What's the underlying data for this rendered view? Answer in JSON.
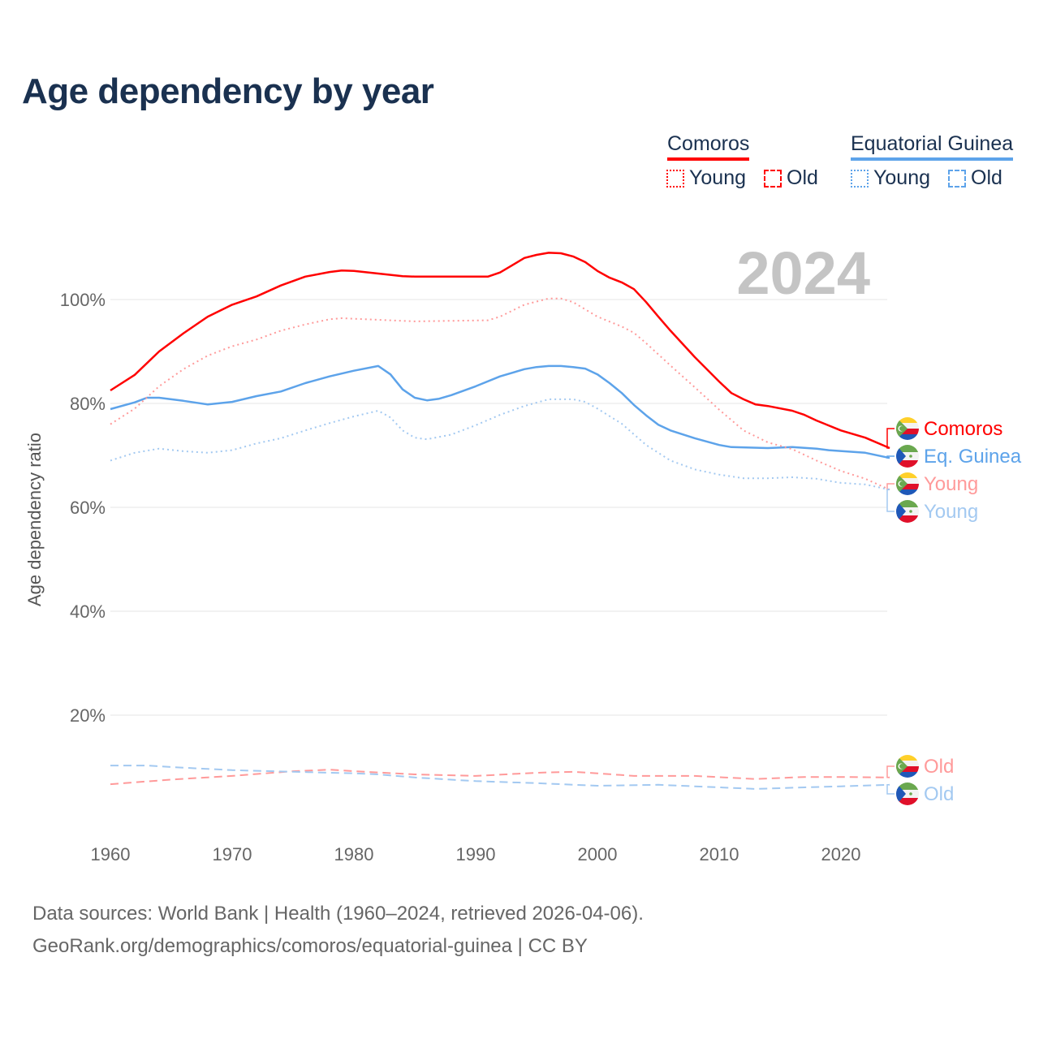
{
  "title": "Age dependency by year",
  "legend": {
    "countries": [
      {
        "name": "Comoros",
        "color": "#ff0000",
        "young_label": "Young",
        "old_label": "Old"
      },
      {
        "name": "Equatorial Guinea",
        "color": "#5da3ea",
        "young_label": "Young",
        "old_label": "Old"
      }
    ]
  },
  "year_watermark": "2024",
  "footer": {
    "line1": "Data sources: World Bank | Health (1960–2024, retrieved 2026-04-06).",
    "line2": "GeoRank.org/demographics/comoros/equatorial-guinea | CC BY"
  },
  "chart_data": {
    "type": "line",
    "title": "Age dependency by year",
    "xlabel": "",
    "ylabel": "Age dependency ratio",
    "xlim": [
      1960,
      2024
    ],
    "ylim": [
      0,
      110
    ],
    "xticks": [
      "1960",
      "1970",
      "1980",
      "1990",
      "2000",
      "2010",
      "2020"
    ],
    "yticks": [
      "20%",
      "40%",
      "60%",
      "80%",
      "100%"
    ],
    "grid": true,
    "series": [
      {
        "name": "Comoros",
        "end_label": "Comoros",
        "country": "comoros",
        "style": "solid",
        "color": "#ff0000",
        "points": [
          [
            1960,
            82.5
          ],
          [
            1962,
            85.5
          ],
          [
            1964,
            90
          ],
          [
            1966,
            93.5
          ],
          [
            1968,
            96.7
          ],
          [
            1970,
            99
          ],
          [
            1972,
            100.6
          ],
          [
            1974,
            102.7
          ],
          [
            1976,
            104.4
          ],
          [
            1978,
            105.3
          ],
          [
            1979,
            105.6
          ],
          [
            1980,
            105.5
          ],
          [
            1982,
            105
          ],
          [
            1984,
            104.5
          ],
          [
            1985,
            104.4
          ],
          [
            1991,
            104.4
          ],
          [
            1992,
            105.2
          ],
          [
            1993,
            106.6
          ],
          [
            1994,
            108
          ],
          [
            1995,
            108.6
          ],
          [
            1996,
            109
          ],
          [
            1997,
            108.9
          ],
          [
            1998,
            108.3
          ],
          [
            1999,
            107.2
          ],
          [
            2000,
            105.5
          ],
          [
            2001,
            104.2
          ],
          [
            2002,
            103.3
          ],
          [
            2003,
            102
          ],
          [
            2004,
            99.5
          ],
          [
            2005,
            96.7
          ],
          [
            2006,
            94
          ],
          [
            2008,
            88.9
          ],
          [
            2010,
            84.2
          ],
          [
            2011,
            82
          ],
          [
            2012,
            80.8
          ],
          [
            2013,
            79.8
          ],
          [
            2014,
            79.5
          ],
          [
            2016,
            78.6
          ],
          [
            2017,
            77.8
          ],
          [
            2018,
            76.7
          ],
          [
            2020,
            74.8
          ],
          [
            2022,
            73.4
          ],
          [
            2024,
            71.4
          ]
        ]
      },
      {
        "name": "Eq. Guinea",
        "end_label": "Eq. Guinea",
        "country": "eqguinea",
        "style": "solid",
        "color": "#5da3ea",
        "points": [
          [
            1960,
            78.9
          ],
          [
            1962,
            80.2
          ],
          [
            1963,
            81.1
          ],
          [
            1964,
            81.1
          ],
          [
            1966,
            80.5
          ],
          [
            1968,
            79.8
          ],
          [
            1970,
            80.3
          ],
          [
            1972,
            81.4
          ],
          [
            1974,
            82.3
          ],
          [
            1976,
            83.9
          ],
          [
            1978,
            85.2
          ],
          [
            1980,
            86.3
          ],
          [
            1982,
            87.2
          ],
          [
            1983,
            85.6
          ],
          [
            1984,
            82.7
          ],
          [
            1985,
            81.1
          ],
          [
            1986,
            80.6
          ],
          [
            1987,
            80.9
          ],
          [
            1988,
            81.6
          ],
          [
            1990,
            83.3
          ],
          [
            1992,
            85.2
          ],
          [
            1994,
            86.6
          ],
          [
            1995,
            87
          ],
          [
            1996,
            87.2
          ],
          [
            1997,
            87.2
          ],
          [
            1998,
            87
          ],
          [
            1999,
            86.7
          ],
          [
            2000,
            85.6
          ],
          [
            2001,
            83.9
          ],
          [
            2002,
            82
          ],
          [
            2003,
            79.7
          ],
          [
            2004,
            77.7
          ],
          [
            2005,
            75.9
          ],
          [
            2006,
            74.8
          ],
          [
            2008,
            73.3
          ],
          [
            2010,
            72
          ],
          [
            2011,
            71.6
          ],
          [
            2014,
            71.4
          ],
          [
            2016,
            71.6
          ],
          [
            2018,
            71.3
          ],
          [
            2019,
            71
          ],
          [
            2022,
            70.5
          ],
          [
            2024,
            69.5
          ]
        ]
      },
      {
        "name": "Comoros Young",
        "end_label": "Young",
        "country": "comoros",
        "style": "dotted",
        "color": "#ff9a9a",
        "points": [
          [
            1960,
            76
          ],
          [
            1962,
            79
          ],
          [
            1964,
            83.3
          ],
          [
            1966,
            86.6
          ],
          [
            1968,
            89.2
          ],
          [
            1970,
            91
          ],
          [
            1972,
            92.3
          ],
          [
            1974,
            94
          ],
          [
            1976,
            95.2
          ],
          [
            1978,
            96.2
          ],
          [
            1979,
            96.4
          ],
          [
            1982,
            96.1
          ],
          [
            1985,
            95.8
          ],
          [
            1991,
            96
          ],
          [
            1992,
            96.7
          ],
          [
            1994,
            99
          ],
          [
            1996,
            100.2
          ],
          [
            1997,
            100.2
          ],
          [
            1998,
            99.5
          ],
          [
            2000,
            96.7
          ],
          [
            2002,
            94.8
          ],
          [
            2003,
            93.6
          ],
          [
            2004,
            91.6
          ],
          [
            2006,
            87.3
          ],
          [
            2008,
            83.1
          ],
          [
            2010,
            78.8
          ],
          [
            2012,
            74.8
          ],
          [
            2014,
            72.5
          ],
          [
            2016,
            71.2
          ],
          [
            2018,
            69
          ],
          [
            2020,
            67
          ],
          [
            2022,
            65.5
          ],
          [
            2024,
            63.4
          ]
        ]
      },
      {
        "name": "Eq. Guinea Young",
        "end_label": "Young",
        "country": "eqguinea",
        "style": "dotted",
        "color": "#a3c9f1",
        "points": [
          [
            1960,
            69
          ],
          [
            1962,
            70.5
          ],
          [
            1964,
            71.3
          ],
          [
            1966,
            70.8
          ],
          [
            1968,
            70.5
          ],
          [
            1970,
            71
          ],
          [
            1972,
            72.3
          ],
          [
            1974,
            73.3
          ],
          [
            1976,
            74.8
          ],
          [
            1978,
            76.2
          ],
          [
            1980,
            77.5
          ],
          [
            1982,
            78.6
          ],
          [
            1983,
            77.3
          ],
          [
            1984,
            74.8
          ],
          [
            1985,
            73.4
          ],
          [
            1986,
            73.1
          ],
          [
            1988,
            74
          ],
          [
            1990,
            75.8
          ],
          [
            1992,
            77.8
          ],
          [
            1994,
            79.5
          ],
          [
            1996,
            80.8
          ],
          [
            1998,
            80.8
          ],
          [
            1999,
            80.3
          ],
          [
            2000,
            79
          ],
          [
            2002,
            76.1
          ],
          [
            2004,
            72
          ],
          [
            2006,
            69
          ],
          [
            2008,
            67.3
          ],
          [
            2010,
            66.3
          ],
          [
            2012,
            65.6
          ],
          [
            2014,
            65.6
          ],
          [
            2016,
            65.8
          ],
          [
            2018,
            65.5
          ],
          [
            2020,
            64.7
          ],
          [
            2022,
            64.4
          ],
          [
            2024,
            63.4
          ]
        ]
      },
      {
        "name": "Comoros Old",
        "end_label": "Old",
        "country": "comoros",
        "style": "dashed",
        "color": "#ff9a9a",
        "points": [
          [
            1960,
            6.7
          ],
          [
            1965,
            7.6
          ],
          [
            1970,
            8.3
          ],
          [
            1975,
            9.2
          ],
          [
            1978,
            9.5
          ],
          [
            1980,
            9.2
          ],
          [
            1985,
            8.6
          ],
          [
            1990,
            8.3
          ],
          [
            1995,
            8.9
          ],
          [
            1998,
            9.1
          ],
          [
            2000,
            8.8
          ],
          [
            2003,
            8.3
          ],
          [
            2008,
            8.3
          ],
          [
            2013,
            7.7
          ],
          [
            2017,
            8.1
          ],
          [
            2020,
            8.1
          ],
          [
            2024,
            8
          ]
        ]
      },
      {
        "name": "Eq. Guinea Old",
        "end_label": "Old",
        "country": "eqguinea",
        "style": "dashed",
        "color": "#a3c9f1",
        "points": [
          [
            1960,
            10.3
          ],
          [
            1963,
            10.3
          ],
          [
            1965,
            10
          ],
          [
            1970,
            9.4
          ],
          [
            1975,
            9.1
          ],
          [
            1980,
            8.8
          ],
          [
            1982,
            8.6
          ],
          [
            1985,
            8
          ],
          [
            1990,
            7.3
          ],
          [
            1995,
            6.9
          ],
          [
            2000,
            6.4
          ],
          [
            2005,
            6.6
          ],
          [
            2010,
            6.1
          ],
          [
            2013,
            5.8
          ],
          [
            2017,
            6.1
          ],
          [
            2020,
            6.3
          ],
          [
            2024,
            6.6
          ]
        ]
      }
    ]
  }
}
